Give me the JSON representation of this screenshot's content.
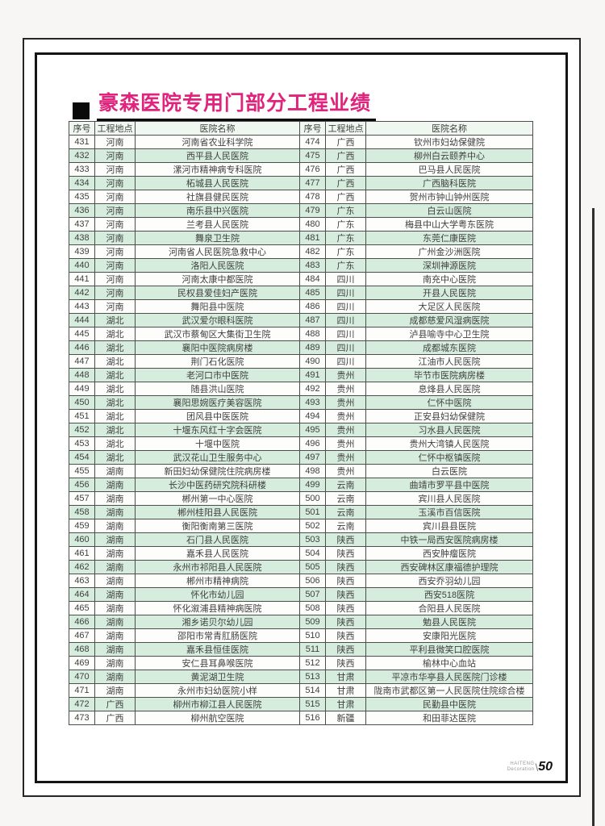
{
  "page": {
    "title": "豪森医院专用门部分工程业绩",
    "page_number": "50",
    "brand_line1": "HAITENG",
    "brand_line2": "Decoration"
  },
  "colors": {
    "title": "#e0237c",
    "row_alt": "#d6edde",
    "header_bg": "#f0f7f1",
    "border": "#4d4d4d",
    "text": "#3f3f3f"
  },
  "table": {
    "headers": [
      "序号",
      "工程地点",
      "医院名称",
      "序号",
      "工程地点",
      "医院名称"
    ],
    "rows": [
      [
        "431",
        "河南",
        "河南省农业科学院",
        "474",
        "广西",
        "钦州市妇幼保健院"
      ],
      [
        "432",
        "河南",
        "西平县人民医院",
        "475",
        "广西",
        "柳州白云颐养中心"
      ],
      [
        "433",
        "河南",
        "漯河市精神病专科医院",
        "476",
        "广西",
        "巴马县人民医院"
      ],
      [
        "434",
        "河南",
        "柘城县人民医院",
        "477",
        "广西",
        "广西脑科医院"
      ],
      [
        "435",
        "河南",
        "社旗县健民医院",
        "478",
        "广西",
        "贺州市钟山钟州医院"
      ],
      [
        "436",
        "河南",
        "南乐县中兴医院",
        "479",
        "广东",
        "白云山医院"
      ],
      [
        "437",
        "河南",
        "兰考县人民医院",
        "480",
        "广东",
        "梅县中山大学粤东医院"
      ],
      [
        "438",
        "河南",
        "舞泉卫生院",
        "481",
        "广东",
        "东莞仁康医院"
      ],
      [
        "439",
        "河南",
        "河南省人民医院急救中心",
        "482",
        "广东",
        "广州金沙洲医院"
      ],
      [
        "440",
        "河南",
        "洛阳人民医院",
        "483",
        "广东",
        "深圳神源医院"
      ],
      [
        "441",
        "河南",
        "河南太康中都医院",
        "484",
        "四川",
        "南充中心医院"
      ],
      [
        "442",
        "河南",
        "民权县爱佳妇产医院",
        "485",
        "四川",
        "开县人民医院"
      ],
      [
        "443",
        "河南",
        "舞阳县中医院",
        "486",
        "四川",
        "大足区人民医院"
      ],
      [
        "444",
        "湖北",
        "武汉爱尔眼科医院",
        "487",
        "四川",
        "成都慈爱风湿病医院"
      ],
      [
        "445",
        "湖北",
        "武汉市蔡甸区大集街卫生院",
        "488",
        "四川",
        "泸县喻寺中心卫生院"
      ],
      [
        "446",
        "湖北",
        "襄阳中医院病房楼",
        "489",
        "四川",
        "成都城东医院"
      ],
      [
        "447",
        "湖北",
        "荆门石化医院",
        "490",
        "四川",
        "江油市人民医院"
      ],
      [
        "448",
        "湖北",
        "老河口市中医院",
        "491",
        "贵州",
        "毕节市医院病房楼"
      ],
      [
        "449",
        "湖北",
        "随县洪山医院",
        "492",
        "贵州",
        "息烽县人民医院"
      ],
      [
        "450",
        "湖北",
        "襄阳思婉医疗美容医院",
        "493",
        "贵州",
        "仁怀中医院"
      ],
      [
        "451",
        "湖北",
        "团风县中医医院",
        "494",
        "贵州",
        "正安县妇幼保健院"
      ],
      [
        "452",
        "湖北",
        "十堰东风红十字会医院",
        "495",
        "贵州",
        "习水县人民医院"
      ],
      [
        "453",
        "湖北",
        "十堰中医院",
        "496",
        "贵州",
        "贵州大湾镇人民医院"
      ],
      [
        "454",
        "湖北",
        "武汉花山卫生服务中心",
        "497",
        "贵州",
        "仁怀中枢镇医院"
      ],
      [
        "455",
        "湖南",
        "新田妇幼保健院住院病房楼",
        "498",
        "贵州",
        "白云医院"
      ],
      [
        "456",
        "湖南",
        "长沙中医药研究院科研楼",
        "499",
        "云南",
        "曲靖市罗平县中医院"
      ],
      [
        "457",
        "湖南",
        "郴州第一中心医院",
        "500",
        "云南",
        "宾川县人民医院"
      ],
      [
        "458",
        "湖南",
        "郴州桂阳县人民医院",
        "501",
        "云南",
        "玉溪市百信医院"
      ],
      [
        "459",
        "湖南",
        "衡阳衡南第三医院",
        "502",
        "云南",
        "宾川县县医院"
      ],
      [
        "460",
        "湖南",
        "石门县人民医院",
        "503",
        "陕西",
        "中铁一局西安医院病房楼"
      ],
      [
        "461",
        "湖南",
        "嘉禾县人民医院",
        "504",
        "陕西",
        "西安肿瘤医院"
      ],
      [
        "462",
        "湖南",
        "永州市祁阳县人民医院",
        "505",
        "陕西",
        "西安碑林区康福德护理院"
      ],
      [
        "463",
        "湖南",
        "郴州市精神病院",
        "506",
        "陕西",
        "西安乔羽幼儿园"
      ],
      [
        "464",
        "湖南",
        "怀化市幼儿园",
        "507",
        "陕西",
        "西安518医院"
      ],
      [
        "465",
        "湖南",
        "怀化溆浦县精神病医院",
        "508",
        "陕西",
        "合阳县人民医院"
      ],
      [
        "466",
        "湖南",
        "湘乡诺贝尔幼儿园",
        "509",
        "陕西",
        "勉县人民医院"
      ],
      [
        "467",
        "湖南",
        "邵阳市常青肛肠医院",
        "510",
        "陕西",
        "安康阳光医院"
      ],
      [
        "468",
        "湖南",
        "嘉禾县恒佳医院",
        "511",
        "陕西",
        "平利县微笑口腔医院"
      ],
      [
        "469",
        "湖南",
        "安仁县耳鼻喉医院",
        "512",
        "陕西",
        "榆林中心血站"
      ],
      [
        "470",
        "湖南",
        "黄泥湖卫生院",
        "513",
        "甘肃",
        "平凉市华亭县人民医院门诊楼"
      ],
      [
        "471",
        "湖南",
        "永州市妇幼医院小样",
        "514",
        "甘肃",
        "陇南市武都区第一人民医院住院综合楼"
      ],
      [
        "472",
        "广西",
        "柳州市柳江县人民医院",
        "515",
        "甘肃",
        "民勤县中医院"
      ],
      [
        "473",
        "广西",
        "柳州航空医院",
        "516",
        "新疆",
        "和田菲达医院"
      ]
    ]
  }
}
